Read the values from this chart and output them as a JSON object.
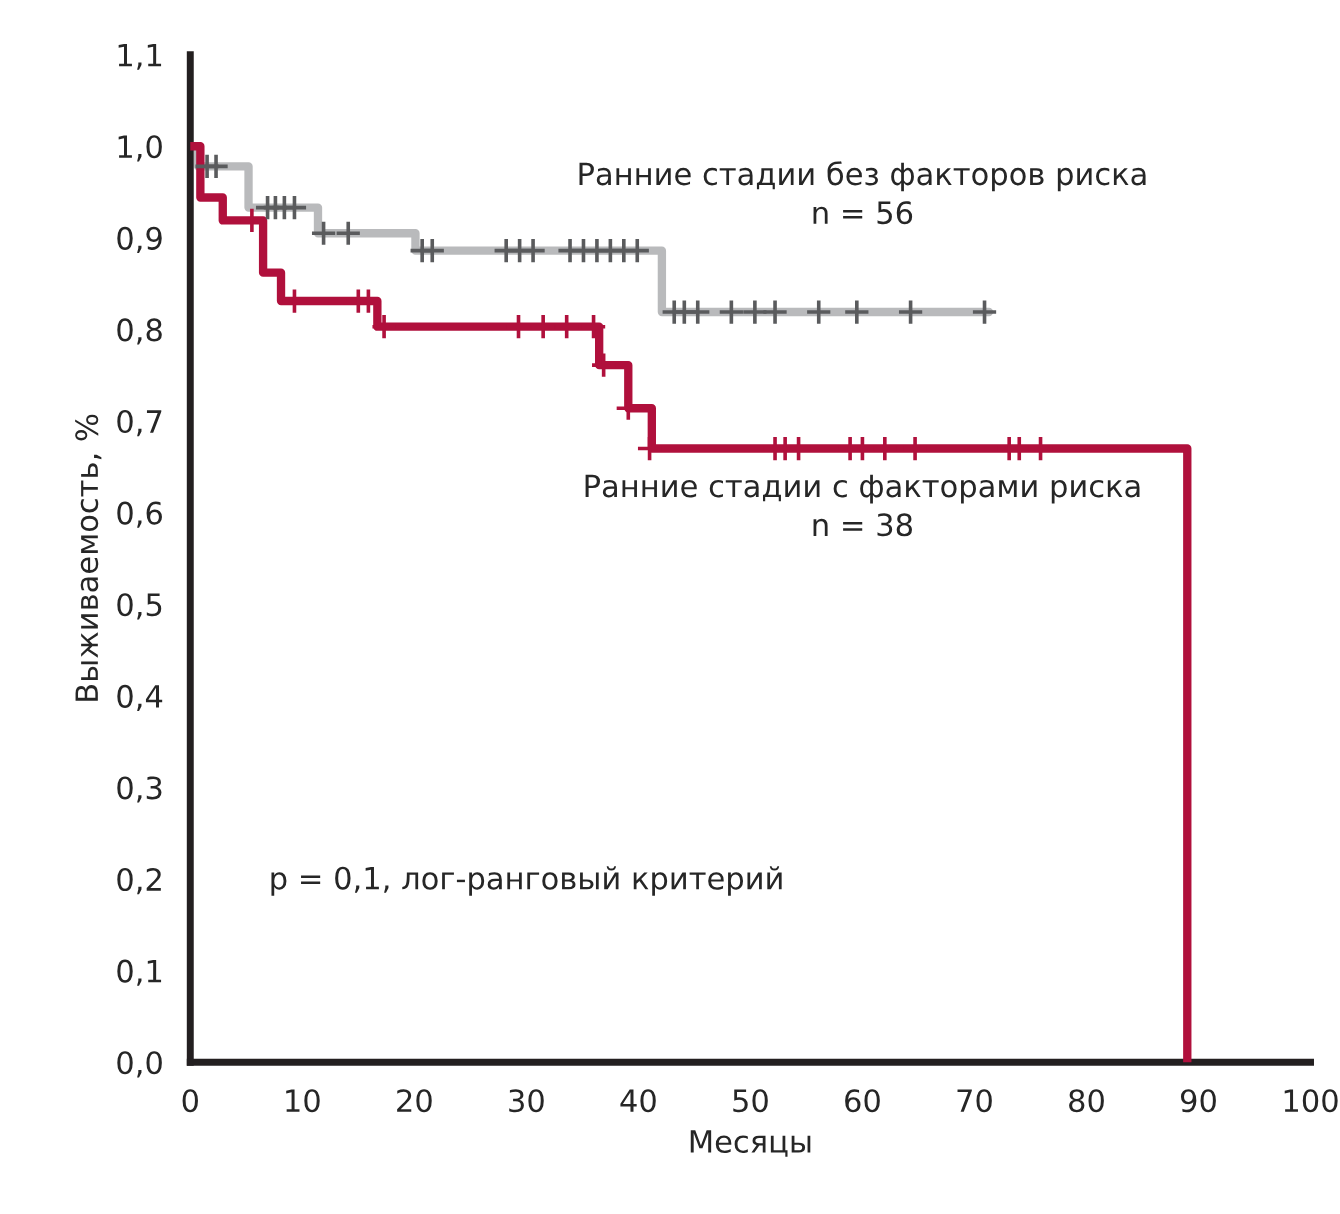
{
  "chart_data": {
    "type": "step",
    "xlabel": "Месяцы",
    "ylabel": "Выживаемость, %",
    "xlim": [
      0,
      100
    ],
    "xticks": [
      0,
      10,
      20,
      30,
      40,
      50,
      60,
      70,
      80,
      90,
      100
    ],
    "ylim": [
      0,
      1.1
    ],
    "yticks": [
      {
        "value": 0,
        "label": "0,0"
      },
      {
        "value": 0.1,
        "label": "0,1"
      },
      {
        "value": 0.2,
        "label": "0,2"
      },
      {
        "value": 0.3,
        "label": "0,3"
      },
      {
        "value": 0.4,
        "label": "0,4"
      },
      {
        "value": 0.5,
        "label": "0,5"
      },
      {
        "value": 0.6,
        "label": "0,6"
      },
      {
        "value": 0.7,
        "label": "0,7"
      },
      {
        "value": 0.8,
        "label": "0,8"
      },
      {
        "value": 0.9,
        "label": "0,9"
      },
      {
        "value": 1.0,
        "label": "1,0"
      },
      {
        "value": 1.1,
        "label": "1,1"
      }
    ],
    "grid": false,
    "legend": false,
    "annotations": [
      "p = 0,1, лог-ранговый критерий"
    ],
    "series": [
      {
        "name": "Ранние стадии без факторов риска\nn = 56",
        "color": "#b9babc",
        "x": [
          0,
          0.7,
          5.2,
          11.4,
          20.1,
          42.1,
          71.3
        ],
        "values": [
          1.0,
          0.978,
          0.933,
          0.905,
          0.886,
          0.819,
          0.819
        ]
      },
      {
        "name": "Ранние стадии с факторами риска\nn = 38",
        "color": "#b0103c",
        "x": [
          0,
          0.9,
          2.9,
          6.5,
          8.1,
          16.7,
          36.5,
          39.1,
          41.2,
          89
        ],
        "values": [
          1.0,
          0.944,
          0.919,
          0.862,
          0.831,
          0.803,
          0.761,
          0.714,
          0.67,
          0
        ]
      },
      {
        "type": "scatter",
        "marker": "cross",
        "color": "#5a5b5d",
        "x": [
          1.5,
          2.3,
          6.9,
          7.6,
          8.4,
          9.3,
          11.9,
          14.1,
          20.7,
          21.6,
          28.2,
          29.4,
          30.6,
          33.9,
          35.1,
          36.3,
          37.5,
          38.7,
          39.9,
          43.2,
          44.1,
          45.3,
          48.3,
          50.4,
          52.2,
          56.1,
          59.5,
          64.3,
          70.9
        ],
        "values": [
          0.978,
          0.978,
          0.933,
          0.933,
          0.933,
          0.933,
          0.905,
          0.905,
          0.886,
          0.886,
          0.886,
          0.886,
          0.886,
          0.886,
          0.886,
          0.886,
          0.886,
          0.886,
          0.886,
          0.819,
          0.819,
          0.819,
          0.819,
          0.819,
          0.819,
          0.819,
          0.819,
          0.819,
          0.819
        ]
      },
      {
        "type": "scatter",
        "marker": "cross",
        "color": "#b0103c",
        "x": [
          5.5,
          9.3,
          15.0,
          15.9,
          17.3,
          29.3,
          31.5,
          33.6,
          36.0,
          36.9,
          39.1,
          41.0,
          52.2,
          53.1,
          54.3,
          58.9,
          60.0,
          62.0,
          64.7,
          73.1,
          74.0,
          75.9
        ],
        "values": [
          0.919,
          0.831,
          0.831,
          0.831,
          0.803,
          0.803,
          0.803,
          0.803,
          0.803,
          0.761,
          0.714,
          0.67,
          0.67,
          0.67,
          0.67,
          0.67,
          0.67,
          0.67,
          0.67,
          0.67,
          0.67,
          0.67
        ]
      }
    ]
  }
}
